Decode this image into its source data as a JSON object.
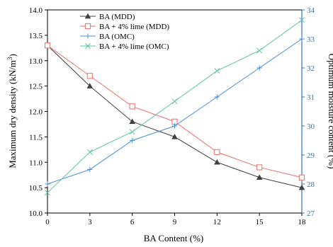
{
  "chart_data": {
    "type": "line",
    "title": "",
    "xlabel": "BA Content (%)",
    "ylabel_left": "Maximum dry density (kN/m",
    "ylabel_left_sup": "3",
    "ylabel_left_end": ")",
    "ylabel_right": "Optimum moisture content (%)",
    "x": [
      0,
      3,
      6,
      9,
      12,
      15,
      18
    ],
    "x_ticks": [
      "0",
      "3",
      "6",
      "9",
      "12",
      "15",
      "18"
    ],
    "xlim": [
      0,
      18
    ],
    "ylim_left": [
      10.0,
      14.0
    ],
    "y_ticks_left": [
      "10.0",
      "10.5",
      "11.0",
      "11.5",
      "12.0",
      "12.5",
      "13.0",
      "13.5",
      "14.0"
    ],
    "ylim_right": [
      27,
      34
    ],
    "y_ticks_right": [
      "27",
      "28",
      "29",
      "30",
      "31",
      "32",
      "33",
      "34"
    ],
    "grid": false,
    "legend_placement": "top-left",
    "series": [
      {
        "name": "BA (MDD)",
        "axis": "left",
        "values": [
          13.3,
          12.5,
          11.8,
          11.5,
          11.0,
          10.7,
          10.5
        ],
        "color": "#404040",
        "marker": "triangle"
      },
      {
        "name": "BA + 4% lime (MDD)",
        "axis": "left",
        "values": [
          13.3,
          12.7,
          12.1,
          11.8,
          11.2,
          10.9,
          10.7
        ],
        "color": "#e8706a",
        "marker": "square"
      },
      {
        "name": "BA (OMC)",
        "axis": "right",
        "values": [
          28.0,
          28.5,
          29.5,
          30.0,
          31.0,
          32.0,
          33.0
        ],
        "color": "#4a90d9",
        "marker": "plus"
      },
      {
        "name": "BA + 4% lime (OMC)",
        "axis": "right",
        "values": [
          27.7,
          29.1,
          29.8,
          30.85,
          31.9,
          32.6,
          33.65
        ],
        "color": "#5cc4a0",
        "marker": "cross"
      }
    ],
    "axis_colors": {
      "left": "#000000",
      "right": "#2e75b6"
    }
  }
}
